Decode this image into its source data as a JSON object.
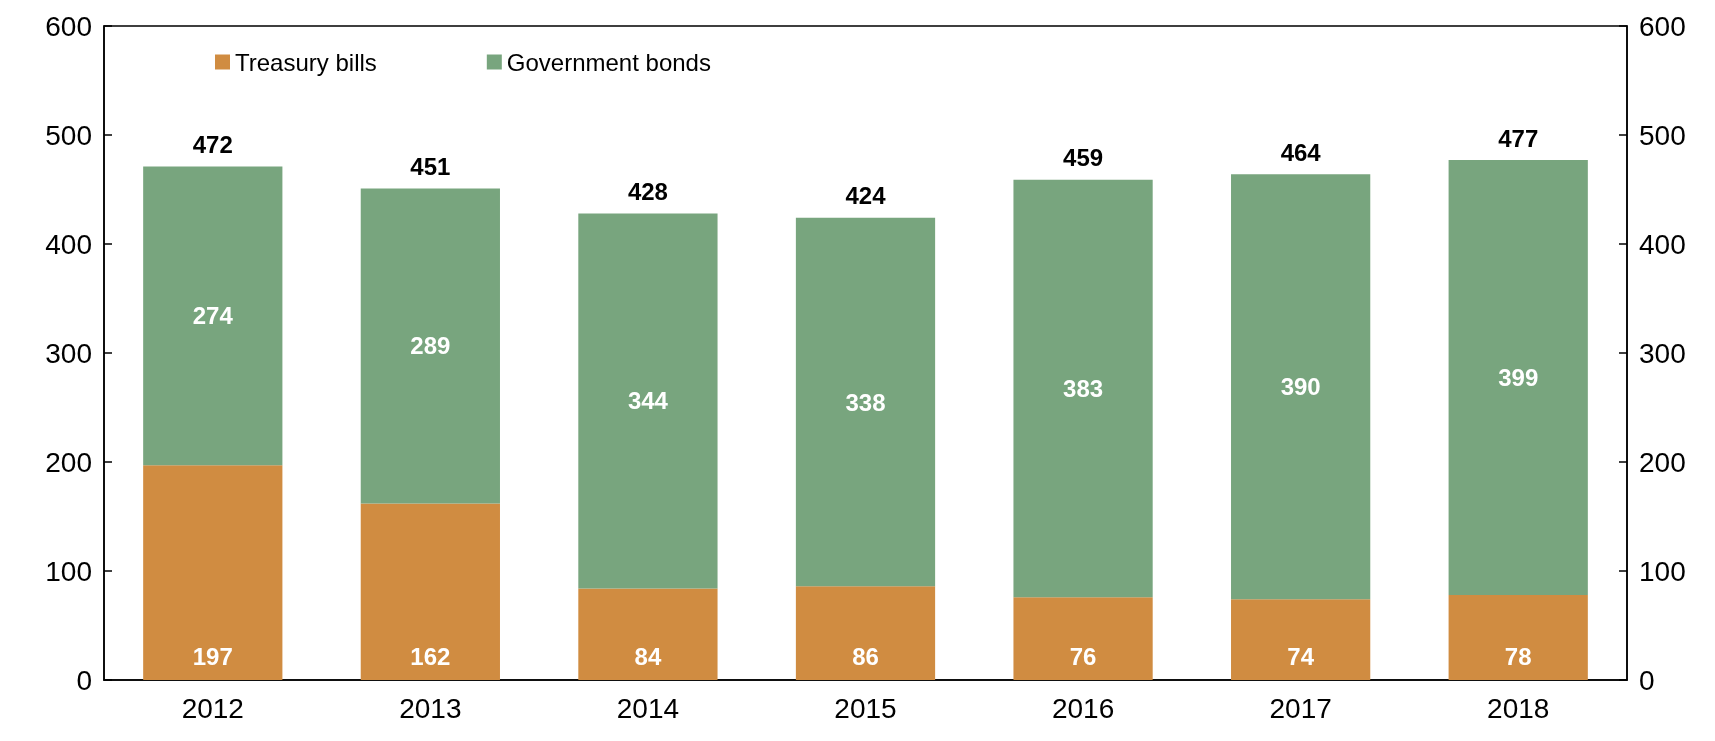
{
  "chart_data": {
    "type": "bar",
    "stacked": true,
    "categories": [
      "2012",
      "2013",
      "2014",
      "2015",
      "2016",
      "2017",
      "2018"
    ],
    "series": [
      {
        "name": "Treasury bills",
        "color": "#d08c41",
        "values": [
          197,
          162,
          84,
          86,
          76,
          74,
          78
        ]
      },
      {
        "name": "Government bonds",
        "color": "#78a57e",
        "values": [
          274,
          289,
          344,
          338,
          383,
          390,
          399
        ]
      }
    ],
    "totals": [
      "472",
      "451",
      "428",
      "424",
      "459",
      "464",
      "477"
    ],
    "data_labels": true,
    "ylim": [
      0,
      600
    ],
    "yticks": [
      0,
      100,
      200,
      300,
      400,
      500,
      600
    ],
    "y2lim": [
      0,
      600
    ],
    "y2ticks": [
      0,
      100,
      200,
      300,
      400,
      500,
      600
    ],
    "grid": false,
    "legend": "top left"
  }
}
